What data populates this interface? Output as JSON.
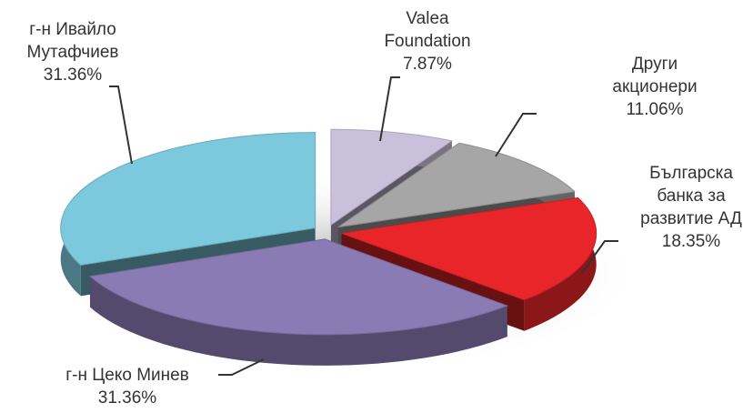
{
  "chart_data": {
    "type": "pie",
    "categories": [
      "Valea Foundation",
      "Други акционери",
      "Българска банка за развитие АД",
      "г-н Цеко Минев",
      "г-н Ивайло Мутафчиев"
    ],
    "values": [
      7.87,
      11.06,
      18.35,
      31.36,
      31.36
    ],
    "value_labels": [
      "7.87%",
      "11.06%",
      "18.35%",
      "31.36%",
      "31.36%"
    ],
    "colors": [
      "#c9c0dc",
      "#a6a6a6",
      "#e8262a",
      "#8b7bb5",
      "#7cc8dc"
    ]
  }
}
